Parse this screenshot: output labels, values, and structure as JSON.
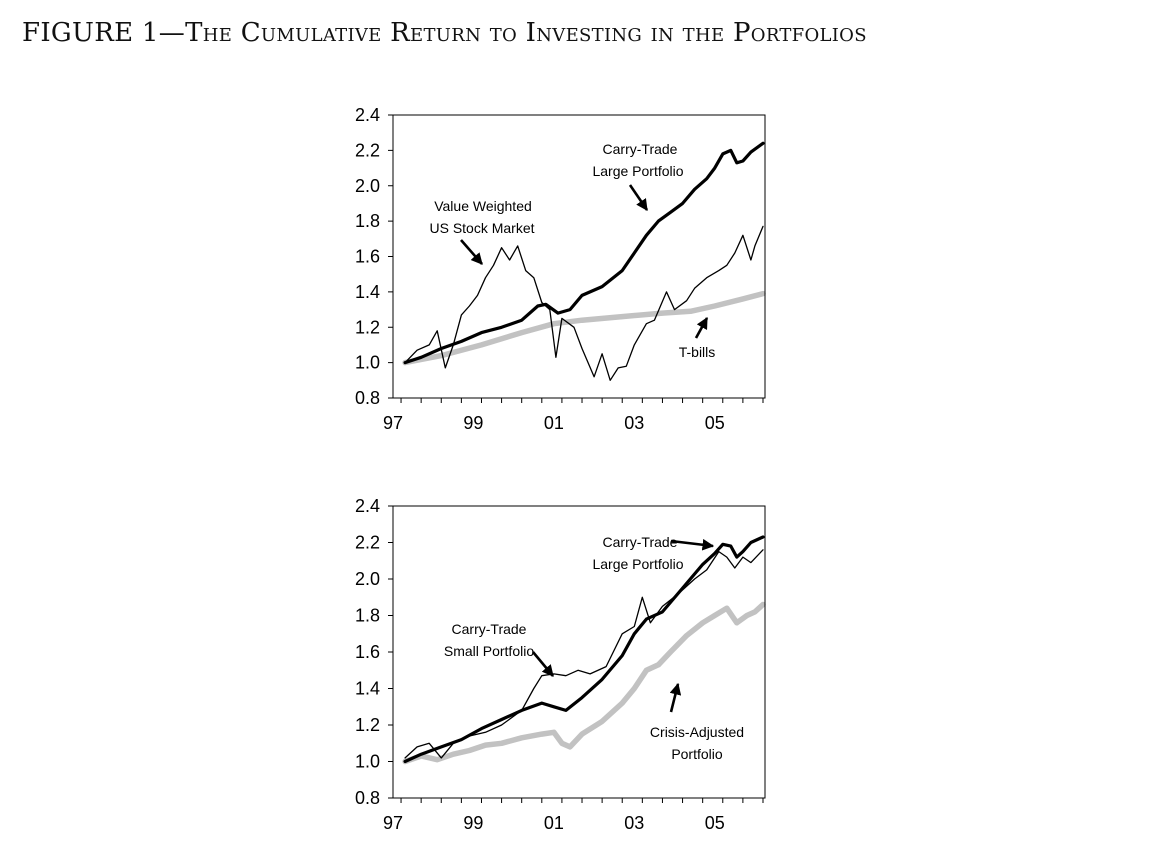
{
  "figure": {
    "title_lead": "FIGURE 1—",
    "title_rest": "The Cumulative Return to Investing in the Portfolios"
  },
  "chart_data": [
    {
      "type": "line",
      "title": "",
      "xlabel": "",
      "ylabel": "",
      "xlim": [
        1997.3,
        2006.55
      ],
      "ylim": [
        0.8,
        2.4
      ],
      "yticks": [
        "0.8",
        "1.0",
        "1.2",
        "1.4",
        "1.6",
        "1.8",
        "2.0",
        "2.2",
        "2.4"
      ],
      "xticks": [
        {
          "label": "97",
          "value": 1997.3
        },
        {
          "label": "99",
          "value": 1999.3
        },
        {
          "label": "01",
          "value": 2001.3
        },
        {
          "label": "03",
          "value": 2003.3
        },
        {
          "label": "05",
          "value": 2005.3
        }
      ],
      "series": [
        {
          "name": "T-bills",
          "color": "#c2c2c2",
          "width": 5.5,
          "points": [
            [
              1997.6,
              1.0
            ],
            [
              1998.5,
              1.04
            ],
            [
              1999.5,
              1.1
            ],
            [
              2000.5,
              1.17
            ],
            [
              2001.3,
              1.22
            ],
            [
              2002.0,
              1.24
            ],
            [
              2003.0,
              1.26
            ],
            [
              2004.0,
              1.28
            ],
            [
              2004.7,
              1.29
            ],
            [
              2005.3,
              1.32
            ],
            [
              2006.0,
              1.36
            ],
            [
              2006.5,
              1.39
            ]
          ]
        },
        {
          "name": "Value Weighted US Stock Market",
          "color": "#000000",
          "width": 1.3,
          "points": [
            [
              1997.6,
              1.0
            ],
            [
              1997.9,
              1.07
            ],
            [
              1998.2,
              1.1
            ],
            [
              1998.4,
              1.18
            ],
            [
              1998.6,
              0.97
            ],
            [
              1998.8,
              1.1
            ],
            [
              1999.0,
              1.27
            ],
            [
              1999.2,
              1.32
            ],
            [
              1999.4,
              1.38
            ],
            [
              1999.6,
              1.48
            ],
            [
              1999.8,
              1.55
            ],
            [
              2000.0,
              1.65
            ],
            [
              2000.2,
              1.58
            ],
            [
              2000.4,
              1.66
            ],
            [
              2000.6,
              1.52
            ],
            [
              2000.8,
              1.48
            ],
            [
              2001.0,
              1.34
            ],
            [
              2001.2,
              1.3
            ],
            [
              2001.35,
              1.03
            ],
            [
              2001.5,
              1.25
            ],
            [
              2001.8,
              1.2
            ],
            [
              2002.0,
              1.08
            ],
            [
              2002.3,
              0.92
            ],
            [
              2002.5,
              1.05
            ],
            [
              2002.7,
              0.9
            ],
            [
              2002.9,
              0.97
            ],
            [
              2003.1,
              0.98
            ],
            [
              2003.3,
              1.1
            ],
            [
              2003.6,
              1.22
            ],
            [
              2003.8,
              1.24
            ],
            [
              2004.1,
              1.4
            ],
            [
              2004.3,
              1.3
            ],
            [
              2004.6,
              1.35
            ],
            [
              2004.8,
              1.42
            ],
            [
              2005.1,
              1.48
            ],
            [
              2005.4,
              1.52
            ],
            [
              2005.6,
              1.55
            ],
            [
              2005.8,
              1.62
            ],
            [
              2006.0,
              1.72
            ],
            [
              2006.2,
              1.58
            ],
            [
              2006.3,
              1.66
            ],
            [
              2006.5,
              1.77
            ]
          ]
        },
        {
          "name": "Carry-Trade Large Portfolio",
          "color": "#000000",
          "width": 3.2,
          "points": [
            [
              1997.6,
              1.0
            ],
            [
              1998.0,
              1.03
            ],
            [
              1998.5,
              1.08
            ],
            [
              1999.0,
              1.12
            ],
            [
              1999.5,
              1.17
            ],
            [
              2000.0,
              1.2
            ],
            [
              2000.5,
              1.24
            ],
            [
              2000.9,
              1.32
            ],
            [
              2001.1,
              1.33
            ],
            [
              2001.4,
              1.28
            ],
            [
              2001.7,
              1.3
            ],
            [
              2002.0,
              1.38
            ],
            [
              2002.5,
              1.43
            ],
            [
              2003.0,
              1.52
            ],
            [
              2003.3,
              1.62
            ],
            [
              2003.6,
              1.72
            ],
            [
              2003.9,
              1.8
            ],
            [
              2004.2,
              1.85
            ],
            [
              2004.5,
              1.9
            ],
            [
              2004.8,
              1.98
            ],
            [
              2005.1,
              2.04
            ],
            [
              2005.3,
              2.1
            ],
            [
              2005.5,
              2.18
            ],
            [
              2005.7,
              2.2
            ],
            [
              2005.85,
              2.13
            ],
            [
              2006.0,
              2.14
            ],
            [
              2006.2,
              2.19
            ],
            [
              2006.5,
              2.24
            ]
          ]
        }
      ],
      "annotations": [
        {
          "lines": [
            "Carry-Trade",
            "Large Portfolio"
          ]
        },
        {
          "lines": [
            "Value Weighted",
            "US Stock Market"
          ]
        },
        {
          "lines": [
            "T-bills"
          ]
        }
      ]
    },
    {
      "type": "line",
      "title": "",
      "xlabel": "",
      "ylabel": "",
      "xlim": [
        1997.3,
        2006.55
      ],
      "ylim": [
        0.8,
        2.4
      ],
      "yticks": [
        "0.8",
        "1.0",
        "1.2",
        "1.4",
        "1.6",
        "1.8",
        "2.0",
        "2.2",
        "2.4"
      ],
      "xticks": [
        {
          "label": "97",
          "value": 1997.3
        },
        {
          "label": "99",
          "value": 1999.3
        },
        {
          "label": "01",
          "value": 2001.3
        },
        {
          "label": "03",
          "value": 2003.3
        },
        {
          "label": "05",
          "value": 2005.3
        }
      ],
      "series": [
        {
          "name": "Crisis-Adjusted Portfolio",
          "color": "#c2c2c2",
          "width": 5.5,
          "points": [
            [
              1997.6,
              1.0
            ],
            [
              1998.0,
              1.03
            ],
            [
              1998.4,
              1.01
            ],
            [
              1998.8,
              1.04
            ],
            [
              1999.2,
              1.06
            ],
            [
              1999.6,
              1.09
            ],
            [
              2000.0,
              1.1
            ],
            [
              2000.5,
              1.13
            ],
            [
              2001.0,
              1.15
            ],
            [
              2001.3,
              1.16
            ],
            [
              2001.5,
              1.1
            ],
            [
              2001.7,
              1.08
            ],
            [
              2002.0,
              1.15
            ],
            [
              2002.5,
              1.22
            ],
            [
              2003.0,
              1.32
            ],
            [
              2003.3,
              1.4
            ],
            [
              2003.6,
              1.5
            ],
            [
              2003.9,
              1.53
            ],
            [
              2004.2,
              1.6
            ],
            [
              2004.6,
              1.69
            ],
            [
              2005.0,
              1.76
            ],
            [
              2005.3,
              1.8
            ],
            [
              2005.6,
              1.84
            ],
            [
              2005.85,
              1.76
            ],
            [
              2006.1,
              1.8
            ],
            [
              2006.3,
              1.82
            ],
            [
              2006.5,
              1.86
            ]
          ]
        },
        {
          "name": "Carry-Trade Small Portfolio",
          "color": "#000000",
          "width": 1.3,
          "points": [
            [
              1997.6,
              1.02
            ],
            [
              1997.9,
              1.08
            ],
            [
              1998.2,
              1.1
            ],
            [
              1998.5,
              1.02
            ],
            [
              1998.8,
              1.1
            ],
            [
              1999.2,
              1.14
            ],
            [
              1999.6,
              1.16
            ],
            [
              2000.0,
              1.2
            ],
            [
              2000.5,
              1.28
            ],
            [
              2000.8,
              1.4
            ],
            [
              2001.0,
              1.47
            ],
            [
              2001.3,
              1.48
            ],
            [
              2001.6,
              1.47
            ],
            [
              2001.9,
              1.5
            ],
            [
              2002.2,
              1.48
            ],
            [
              2002.6,
              1.52
            ],
            [
              2003.0,
              1.7
            ],
            [
              2003.3,
              1.74
            ],
            [
              2003.5,
              1.9
            ],
            [
              2003.7,
              1.76
            ],
            [
              2004.0,
              1.85
            ],
            [
              2004.4,
              1.92
            ],
            [
              2004.8,
              2.0
            ],
            [
              2005.1,
              2.05
            ],
            [
              2005.4,
              2.15
            ],
            [
              2005.6,
              2.12
            ],
            [
              2005.8,
              2.06
            ],
            [
              2006.0,
              2.12
            ],
            [
              2006.2,
              2.09
            ],
            [
              2006.5,
              2.16
            ]
          ]
        },
        {
          "name": "Carry-Trade Large Portfolio",
          "color": "#000000",
          "width": 3.2,
          "points": [
            [
              1997.6,
              1.0
            ],
            [
              1998.0,
              1.04
            ],
            [
              1998.5,
              1.08
            ],
            [
              1999.0,
              1.12
            ],
            [
              1999.5,
              1.18
            ],
            [
              2000.0,
              1.23
            ],
            [
              2000.5,
              1.28
            ],
            [
              2001.0,
              1.32
            ],
            [
              2001.3,
              1.3
            ],
            [
              2001.6,
              1.28
            ],
            [
              2002.0,
              1.35
            ],
            [
              2002.5,
              1.45
            ],
            [
              2003.0,
              1.58
            ],
            [
              2003.3,
              1.7
            ],
            [
              2003.6,
              1.78
            ],
            [
              2004.0,
              1.82
            ],
            [
              2004.5,
              1.95
            ],
            [
              2005.0,
              2.08
            ],
            [
              2005.3,
              2.14
            ],
            [
              2005.5,
              2.19
            ],
            [
              2005.7,
              2.18
            ],
            [
              2005.85,
              2.12
            ],
            [
              2006.0,
              2.15
            ],
            [
              2006.2,
              2.2
            ],
            [
              2006.5,
              2.23
            ]
          ]
        }
      ],
      "annotations": [
        {
          "lines": [
            "Carry-Trade",
            "Large Portfolio"
          ]
        },
        {
          "lines": [
            "Carry-Trade",
            "Small Portfolio"
          ]
        },
        {
          "lines": [
            "Crisis-Adjusted",
            "Portfolio"
          ]
        }
      ]
    }
  ]
}
